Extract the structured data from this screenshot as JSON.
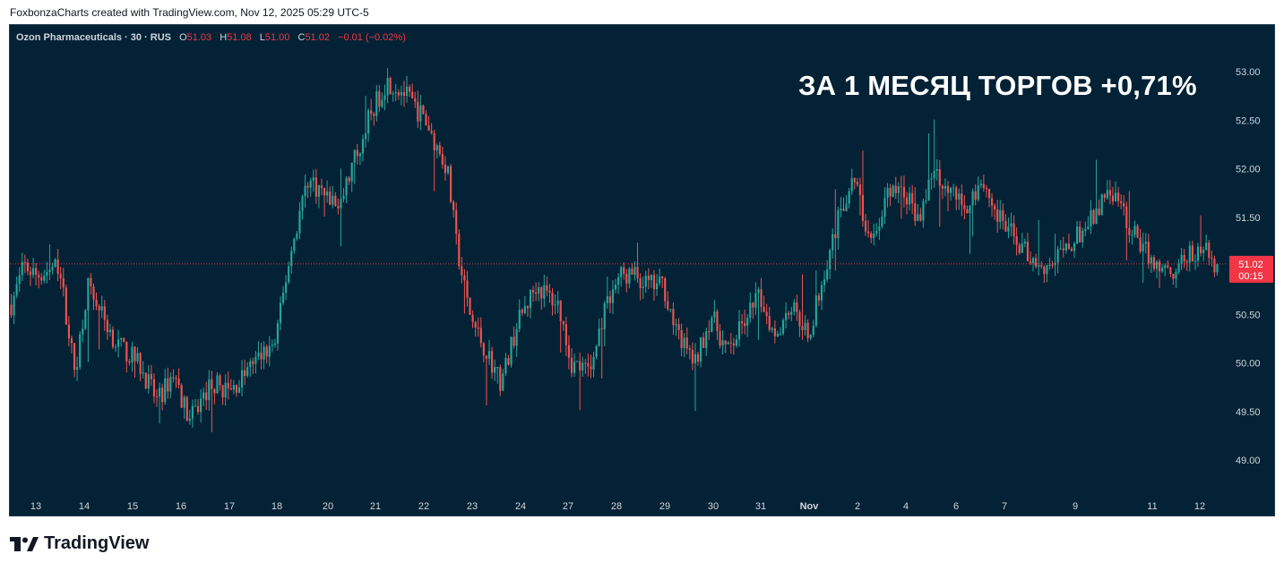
{
  "caption": "FoxbonzaCharts created with TradingView.com, Nov 12, 2025 05:29 UTC-5",
  "legend": {
    "symbol": "Ozon Pharmaceuticals · 30 · RUS",
    "o_label": "O",
    "o_value": "51.03",
    "h_label": "H",
    "h_value": "51.08",
    "l_label": "L",
    "l_value": "51.00",
    "c_label": "C",
    "c_value": "51.02",
    "change": "−0.01 (−0.02%)"
  },
  "headline": "ЗА 1 МЕСЯЦ ТОРГОВ +0,71%",
  "price_tag": {
    "price": "51.02",
    "countdown": "00:15",
    "color": "#f23645"
  },
  "colors": {
    "background": "#042235",
    "up": "#26a69a",
    "down": "#ef5350",
    "text": "#d1d4dc"
  },
  "footer": {
    "brand": "TradingView",
    "icon": "tradingview-logo-icon"
  },
  "chart_data": {
    "type": "candlestick",
    "ylim": [
      48.75,
      53.2
    ],
    "y_ticks": [
      "53.00",
      "52.50",
      "52.00",
      "51.50",
      "50.50",
      "50.00",
      "49.50",
      "49.00"
    ],
    "x_ticks": [
      "13",
      "14",
      "15",
      "16",
      "17",
      "18",
      "20",
      "21",
      "22",
      "23",
      "24",
      "27",
      "28",
      "29",
      "30",
      "31",
      "Nov",
      "2",
      "4",
      "6",
      "7",
      "9",
      "11",
      "12"
    ],
    "last_price": 51.02,
    "path": [
      [
        0,
        50.6
      ],
      [
        0.4,
        51.0
      ],
      [
        0.8,
        50.9
      ],
      [
        1.5,
        51.0
      ],
      [
        2.0,
        49.9
      ],
      [
        2.4,
        50.8
      ],
      [
        3.3,
        50.2
      ],
      [
        4.0,
        50.0
      ],
      [
        4.6,
        49.6
      ],
      [
        5.1,
        49.9
      ],
      [
        5.6,
        49.4
      ],
      [
        6.3,
        49.8
      ],
      [
        6.9,
        49.7
      ],
      [
        7.6,
        50.0
      ],
      [
        8.3,
        50.2
      ],
      [
        8.7,
        51.0
      ],
      [
        9.3,
        51.9
      ],
      [
        10.3,
        51.6
      ],
      [
        11.2,
        52.5
      ],
      [
        11.8,
        52.9
      ],
      [
        12.3,
        52.8
      ],
      [
        13.0,
        52.5
      ],
      [
        13.7,
        52.0
      ],
      [
        14.0,
        51.2
      ],
      [
        14.4,
        50.5
      ],
      [
        14.8,
        50.2
      ],
      [
        15.4,
        49.8
      ],
      [
        15.9,
        50.4
      ],
      [
        16.5,
        50.8
      ],
      [
        17.2,
        50.6
      ],
      [
        17.6,
        50.0
      ],
      [
        18.2,
        49.9
      ],
      [
        18.6,
        50.5
      ],
      [
        19.1,
        50.9
      ],
      [
        19.6,
        50.9
      ],
      [
        20.0,
        50.8
      ],
      [
        20.5,
        50.8
      ],
      [
        20.9,
        50.3
      ],
      [
        21.5,
        50.0
      ],
      [
        22.0,
        50.5
      ],
      [
        22.5,
        50.1
      ],
      [
        23.0,
        50.4
      ],
      [
        23.5,
        50.7
      ],
      [
        24.0,
        50.3
      ],
      [
        24.5,
        50.6
      ],
      [
        25.1,
        50.3
      ],
      [
        25.5,
        50.9
      ],
      [
        26.0,
        51.5
      ],
      [
        26.5,
        51.9
      ],
      [
        27.0,
        51.2
      ],
      [
        27.5,
        51.7
      ],
      [
        28.0,
        51.8
      ],
      [
        28.5,
        51.5
      ],
      [
        29.0,
        52.0
      ],
      [
        29.5,
        51.8
      ],
      [
        30.0,
        51.6
      ],
      [
        30.5,
        51.9
      ],
      [
        31.0,
        51.5
      ],
      [
        31.5,
        51.3
      ],
      [
        32.0,
        51.1
      ],
      [
        32.5,
        51.0
      ],
      [
        33.0,
        51.1
      ],
      [
        33.5,
        51.3
      ],
      [
        34.0,
        51.5
      ],
      [
        34.5,
        51.8
      ],
      [
        35.0,
        51.5
      ],
      [
        35.5,
        51.2
      ],
      [
        36.0,
        51.0
      ],
      [
        36.5,
        50.95
      ],
      [
        37.0,
        51.1
      ],
      [
        37.5,
        51.15
      ],
      [
        37.9,
        51.0
      ]
    ]
  }
}
